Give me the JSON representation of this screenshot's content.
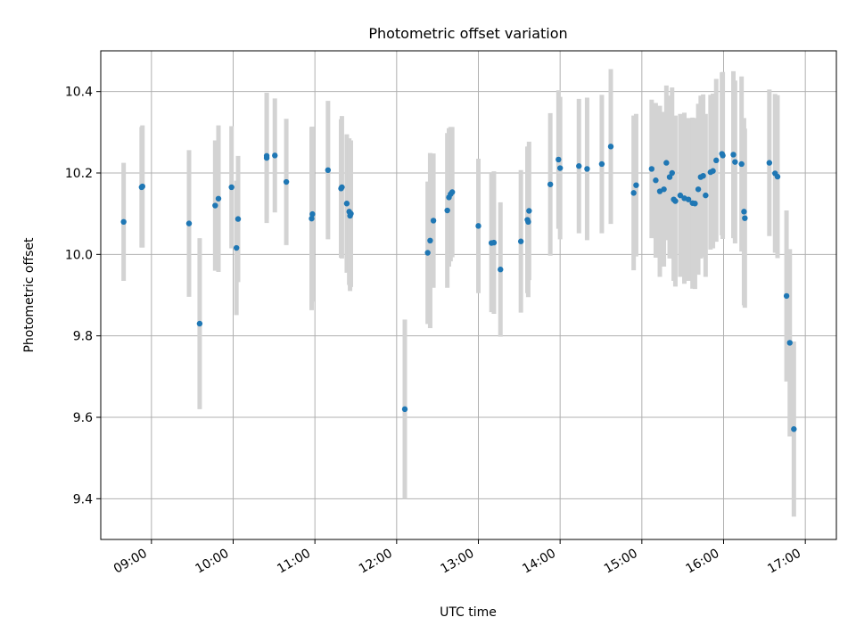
{
  "chart_data": {
    "type": "scatter",
    "title": "Photometric offset variation",
    "xlabel": "UTC time",
    "ylabel": "Photometric offset",
    "x_tick_labels": [
      "09:00",
      "10:00",
      "11:00",
      "12:00",
      "13:00",
      "14:00",
      "15:00",
      "16:00",
      "17:00"
    ],
    "x_tick_values": [
      9,
      10,
      11,
      12,
      13,
      14,
      15,
      16,
      17
    ],
    "y_tick_labels": [
      "9.4",
      "9.6",
      "9.8",
      "10.0",
      "10.2",
      "10.4"
    ],
    "y_tick_values": [
      9.4,
      9.6,
      9.8,
      10.0,
      10.2,
      10.4
    ],
    "xlim": [
      8.38,
      17.38
    ],
    "ylim": [
      9.3,
      10.5
    ],
    "grid": true,
    "colors": {
      "point": "#1f77b4",
      "errorbar": "#d3d3d3",
      "grid": "#b0b0b0"
    },
    "series": [
      {
        "x": [
          8.66,
          8.88,
          8.89,
          9.46,
          9.59,
          9.78,
          9.82,
          9.98,
          10.04,
          10.06,
          10.41,
          10.41,
          10.51,
          10.65,
          10.96,
          10.97,
          11.16,
          11.32,
          11.33,
          11.39,
          11.42,
          11.43,
          11.44,
          12.1,
          12.38,
          12.41,
          12.45,
          12.62,
          12.64,
          12.66,
          12.68,
          13.0,
          13.16,
          13.19,
          13.27,
          13.52,
          13.6,
          13.61,
          13.62,
          13.88,
          13.98,
          14.0,
          14.23,
          14.33,
          14.51,
          14.62,
          14.9,
          14.93,
          15.12,
          15.17,
          15.22,
          15.27,
          15.3,
          15.34,
          15.37,
          15.39,
          15.41,
          15.47,
          15.52,
          15.57,
          15.62,
          15.65,
          15.69,
          15.72,
          15.75,
          15.78,
          15.84,
          15.87,
          15.91,
          15.98,
          15.99,
          16.12,
          16.14,
          16.22,
          16.25,
          16.26,
          16.56,
          16.63,
          16.66,
          16.77,
          16.81,
          16.86
        ],
        "y": [
          10.08,
          10.165,
          10.167,
          10.076,
          9.83,
          10.12,
          10.137,
          10.165,
          10.016,
          10.087,
          10.237,
          10.242,
          10.243,
          10.178,
          10.088,
          10.099,
          10.207,
          10.162,
          10.165,
          10.125,
          10.105,
          10.095,
          10.1,
          9.62,
          10.004,
          10.034,
          10.083,
          10.108,
          10.14,
          10.148,
          10.153,
          10.07,
          10.028,
          10.029,
          9.963,
          10.032,
          10.085,
          10.08,
          10.107,
          10.172,
          10.233,
          10.212,
          10.217,
          10.21,
          10.222,
          10.265,
          10.151,
          10.17,
          10.21,
          10.182,
          10.155,
          10.16,
          10.225,
          10.19,
          10.2,
          10.135,
          10.131,
          10.145,
          10.138,
          10.135,
          10.126,
          10.125,
          10.16,
          10.19,
          10.193,
          10.145,
          10.202,
          10.205,
          10.231,
          10.247,
          10.243,
          10.245,
          10.227,
          10.222,
          10.105,
          10.089,
          10.225,
          10.199,
          10.191,
          9.898,
          9.783,
          9.571
        ],
        "err": [
          0.145,
          0.148,
          0.15,
          0.18,
          0.21,
          0.16,
          0.18,
          0.15,
          0.165,
          0.155,
          0.16,
          0.155,
          0.14,
          0.155,
          0.225,
          0.215,
          0.17,
          0.17,
          0.175,
          0.17,
          0.18,
          0.185,
          0.18,
          0.22,
          0.175,
          0.215,
          0.165,
          0.19,
          0.17,
          0.165,
          0.16,
          0.165,
          0.17,
          0.175,
          0.165,
          0.175,
          0.18,
          0.185,
          0.17,
          0.175,
          0.17,
          0.175,
          0.165,
          0.175,
          0.17,
          0.19,
          0.19,
          0.175,
          0.17,
          0.19,
          0.21,
          0.19,
          0.19,
          0.2,
          0.21,
          0.2,
          0.21,
          0.2,
          0.21,
          0.2,
          0.21,
          0.21,
          0.21,
          0.2,
          0.2,
          0.2,
          0.19,
          0.19,
          0.2,
          0.2,
          0.205,
          0.205,
          0.2,
          0.215,
          0.23,
          0.22,
          0.18,
          0.195,
          0.2,
          0.21,
          0.23,
          0.215
        ]
      }
    ]
  }
}
